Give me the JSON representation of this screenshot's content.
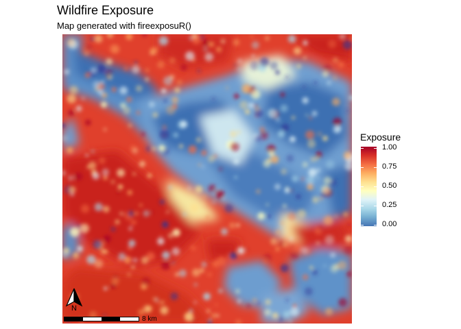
{
  "title": "Wildfire Exposure",
  "subtitle": "Map generated with fireexposuR()",
  "legend": {
    "title": "Exposure",
    "ticks": [
      "1.00",
      "0.75",
      "0.50",
      "0.25",
      "0.00"
    ],
    "colors": [
      "#313695",
      "#4575b4",
      "#74add1",
      "#abd9e9",
      "#e0f3f8",
      "#ffffbf",
      "#fee090",
      "#fdae61",
      "#f46d43",
      "#d73027",
      "#a50026"
    ]
  },
  "north_arrow": {
    "label": "N"
  },
  "scale_bar": {
    "label": "8 km"
  }
}
